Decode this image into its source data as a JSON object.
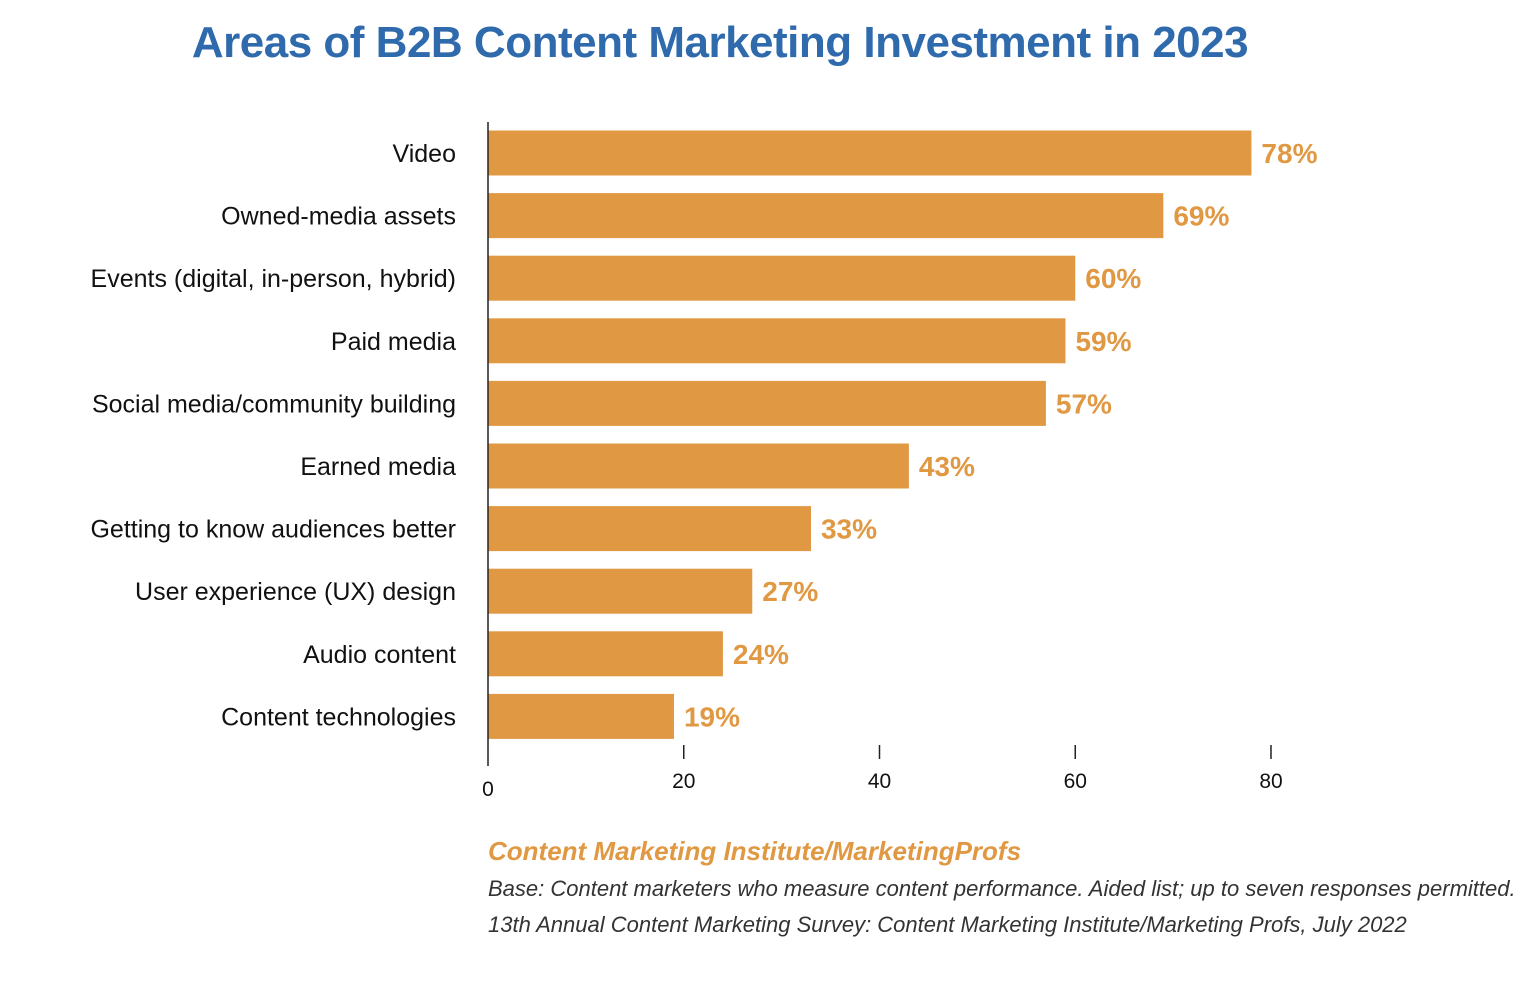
{
  "colors": {
    "title": "#2f6aac",
    "bar": "#e09842",
    "value_label": "#e09842",
    "source": "#e09842",
    "text": "#111111",
    "axis": "#222222"
  },
  "chart_data": {
    "type": "bar",
    "orientation": "horizontal",
    "title": "Areas of B2B Content Marketing Investment in 2023",
    "categories": [
      "Video",
      "Owned-media assets",
      "Events (digital, in-person, hybrid)",
      "Paid media",
      "Social media/community building",
      "Earned media",
      "Getting to know audiences better",
      "User experience (UX) design",
      "Audio content",
      "Content technologies"
    ],
    "values": [
      78,
      69,
      60,
      59,
      57,
      43,
      33,
      27,
      24,
      19
    ],
    "value_labels": [
      "78%",
      "69%",
      "60%",
      "59%",
      "57%",
      "43%",
      "33%",
      "27%",
      "24%",
      "19%"
    ],
    "xlim": [
      0,
      80
    ],
    "x_ticks": [
      0,
      20,
      40,
      60,
      80
    ],
    "grid": false,
    "legend": "none"
  },
  "source": {
    "title": "Content Marketing Institute/MarketingProfs",
    "base_note": "Base: Content marketers who measure content performance. Aided list; up to seven responses permitted.",
    "survey_note": "13th Annual Content Marketing Survey:  Content Marketing Institute/Marketing Profs, July 2022"
  }
}
